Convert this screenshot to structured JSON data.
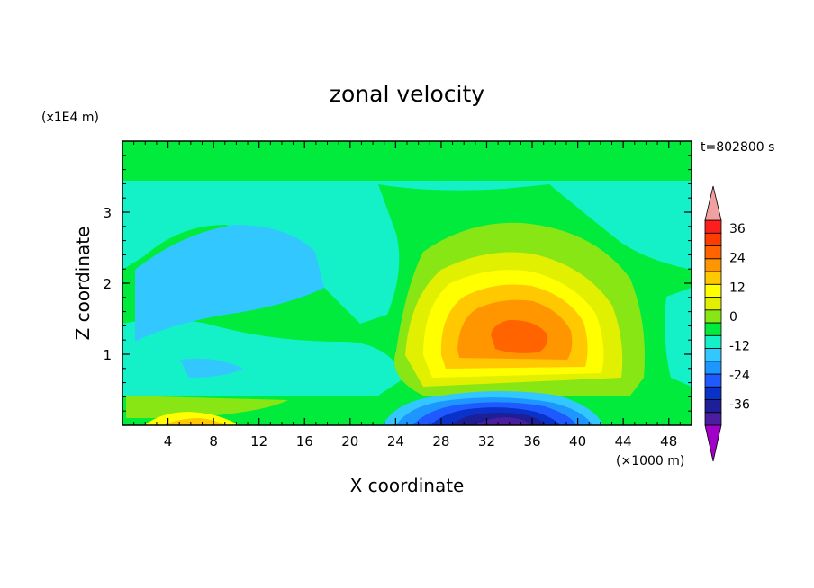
{
  "chart_data": {
    "type": "contour",
    "title": "zonal velocity",
    "xlabel": "X coordinate",
    "ylabel": "Z coordinate",
    "x_units": "(×1000 m)",
    "y_units": "(x1E4 m)",
    "time_label": "t=802800 s",
    "xlim": [
      0,
      50
    ],
    "ylim": [
      0,
      4
    ],
    "x_ticks": [
      4,
      8,
      12,
      16,
      20,
      24,
      28,
      32,
      36,
      40,
      44,
      48
    ],
    "x_tick_labels": [
      "4",
      "8",
      "12",
      "16",
      "20",
      "24",
      "28",
      "32",
      "36",
      "40",
      "44",
      "48"
    ],
    "y_ticks": [
      1,
      2,
      3
    ],
    "y_tick_labels": [
      "1",
      "2",
      "3"
    ],
    "colorbar": {
      "levels": [
        -42,
        -36,
        -30,
        -24,
        -18,
        -12,
        -6,
        0,
        6,
        12,
        18,
        24,
        30,
        36,
        42
      ],
      "tick_values": [
        -36,
        -24,
        -12,
        0,
        12,
        24,
        36
      ],
      "tick_labels": [
        "-36",
        "-24",
        "-12",
        "0",
        "12",
        "24",
        "36"
      ],
      "colors": [
        "#4b1ea0",
        "#1e1e96",
        "#0a32c8",
        "#1e5aff",
        "#1e96ff",
        "#32c8ff",
        "#14f0c8",
        "#00eb3c",
        "#87e614",
        "#e1f000",
        "#ffff00",
        "#ffc800",
        "#ff9600",
        "#ff6400",
        "#ff3c00",
        "#ff1e1e"
      ],
      "under_color": "#a000c8",
      "over_color": "#f0a0a0"
    },
    "features": [
      {
        "x": 33,
        "z": 1.15,
        "value": 27
      },
      {
        "x": 33,
        "z": 0.1,
        "value": -38
      },
      {
        "x": 7,
        "z": 0.05,
        "value": 15
      },
      {
        "x": 10,
        "z": 2.0,
        "value": -6
      }
    ]
  }
}
